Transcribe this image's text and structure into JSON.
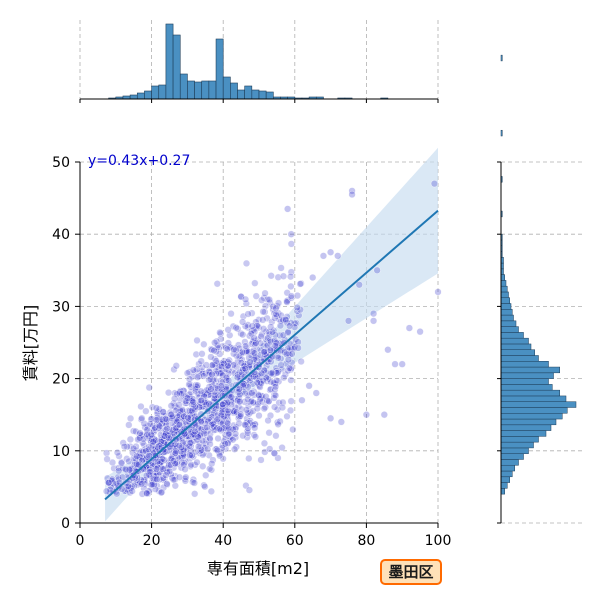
{
  "badge": {
    "label": "墨田区"
  },
  "colors": {
    "scatter": "#3a3acc",
    "regression": "#1f77b4",
    "ci_band": "#c6dcef",
    "hist": "#4a90c2",
    "grid": "#b0b0b0",
    "equation": "#0000cc",
    "badge_border": "#ff6a00",
    "badge_fill": "#ffe1b8"
  },
  "chart_data": {
    "type": "scatter",
    "title": "",
    "xlabel": "専有面積[m2]",
    "ylabel": "賃料[万円]",
    "xlim": [
      0,
      100
    ],
    "ylim": [
      0,
      50
    ],
    "x_ticks": [
      0,
      20,
      40,
      60,
      80,
      100
    ],
    "y_ticks": [
      0,
      10,
      20,
      30,
      40,
      50
    ],
    "grid": true,
    "regression": {
      "equation": "y=0.43x+0.27",
      "slope": 0.43,
      "intercept": 0.27,
      "x_range": [
        7,
        100
      ],
      "confidence_band": {
        "half_width_center": 0.3,
        "center_x": 30,
        "growth_per_x": 0.12
      }
    },
    "scatter_model": {
      "count": 1500,
      "x_mode_weights": [
        [
          26,
          0.3
        ],
        [
          40,
          0.22
        ],
        [
          50,
          0.28
        ],
        [
          18,
          0.2
        ]
      ],
      "x_range": [
        7,
        100
      ],
      "noise_sd_base": 2.0,
      "noise_sd_slope": 0.06
    },
    "outliers": [
      [
        76,
        46
      ],
      [
        76,
        45.5
      ],
      [
        99,
        47
      ],
      [
        58,
        43.5
      ],
      [
        59,
        40
      ],
      [
        70,
        37.5
      ],
      [
        72,
        37
      ],
      [
        68,
        37
      ],
      [
        83,
        35
      ],
      [
        78,
        33
      ],
      [
        65,
        34
      ],
      [
        100,
        32
      ],
      [
        92,
        27
      ],
      [
        95,
        26.5
      ],
      [
        82,
        29
      ],
      [
        82,
        28
      ],
      [
        86,
        24
      ],
      [
        88,
        22
      ],
      [
        90,
        22
      ],
      [
        75,
        28
      ],
      [
        80,
        15
      ],
      [
        85,
        15
      ],
      [
        70,
        14.5
      ],
      [
        73,
        14
      ],
      [
        66,
        18
      ],
      [
        62,
        17
      ],
      [
        64,
        19
      ]
    ],
    "top_histogram": {
      "bin_width": 2,
      "bins_start": 8,
      "counts": [
        1,
        2,
        3,
        4,
        6,
        8,
        13,
        14,
        75,
        64,
        25,
        18,
        17,
        18,
        18,
        60,
        22,
        16,
        9,
        13,
        9,
        8,
        7,
        2,
        2,
        2,
        1,
        1,
        2,
        2,
        0,
        0,
        1,
        1,
        0,
        0,
        0,
        0,
        1,
        0,
        0,
        0,
        0,
        0,
        0,
        0
      ]
    },
    "right_histogram": {
      "bin_width": 0.8,
      "bins_start": 4,
      "counts": [
        3,
        5,
        7,
        9,
        11,
        14,
        18,
        22,
        26,
        30,
        36,
        40,
        44,
        49,
        53,
        60,
        52,
        47,
        41,
        38,
        42,
        47,
        38,
        30,
        27,
        24,
        22,
        18,
        14,
        12,
        10,
        9,
        8,
        7,
        6,
        5,
        4,
        3,
        2,
        2,
        2,
        1,
        1,
        1,
        1,
        0,
        0,
        0,
        1,
        0,
        0,
        0,
        0,
        0,
        1,
        0,
        0,
        0,
        0,
        0,
        0,
        0,
        1,
        0,
        0,
        0,
        0,
        0,
        0,
        0,
        0,
        0,
        0,
        0,
        0,
        1,
        0,
        0,
        0,
        0,
        0,
        0,
        0,
        0,
        0,
        0,
        0,
        0,
        0
      ]
    }
  }
}
